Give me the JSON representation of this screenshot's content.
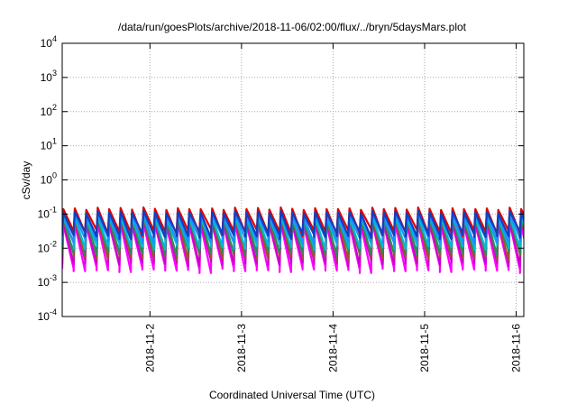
{
  "chart_data": {
    "type": "line",
    "title": "/data/run/goesPlots/archive/2018-11-06/02:00/flux/../bryn/5daysMars.plot",
    "xlabel": "Coordinated Universal Time (UTC)",
    "ylabel": "cSv/day",
    "y_scale": "log",
    "ylim": [
      0.0001,
      10000
    ],
    "xlim": [
      "2018-11-01 01:00",
      "2018-11-06 02:00"
    ],
    "grid": true,
    "legend": "none",
    "y_ticks": [
      {
        "base": "10",
        "exp": "-4"
      },
      {
        "base": "10",
        "exp": "-3"
      },
      {
        "base": "10",
        "exp": "-2"
      },
      {
        "base": "10",
        "exp": "-1"
      },
      {
        "base": "10",
        "exp": "0"
      },
      {
        "base": "10",
        "exp": "1"
      },
      {
        "base": "10",
        "exp": "2"
      },
      {
        "base": "10",
        "exp": "3"
      },
      {
        "base": "10",
        "exp": "4"
      }
    ],
    "x_ticks": [
      "2018-11-2",
      "2018-11-3",
      "2018-11-4",
      "2018-11-5",
      "2018-11-6"
    ],
    "cycle_hours": 3,
    "series": [
      {
        "color": "#ff00ff",
        "peak": 0.05,
        "trough": 0.0025
      },
      {
        "color": "#cc00cc",
        "peak": 0.06,
        "trough": 0.004
      },
      {
        "color": "#a0522d",
        "peak": 0.07,
        "trough": 0.006
      },
      {
        "color": "#2e8b57",
        "peak": 0.075,
        "trough": 0.008
      },
      {
        "color": "#00bcd4",
        "peak": 0.08,
        "trough": 0.012
      },
      {
        "color": "#1e90ff",
        "peak": 0.09,
        "trough": 0.018
      },
      {
        "color": "#e00000",
        "peak": 0.14,
        "trough": 0.03
      },
      {
        "color": "#1040c0",
        "peak": 0.11,
        "trough": 0.025
      }
    ],
    "peak_modulation": [
      1.0,
      1.05,
      0.95,
      1.1,
      1.0,
      1.08,
      0.97,
      1.12,
      1.02,
      0.94,
      1.06,
      1.0
    ],
    "trough_modulation": [
      1.0,
      0.85,
      1.1,
      0.9,
      1.2,
      0.8,
      1.05,
      0.95,
      1.15,
      0.88,
      1.0,
      0.92,
      0.75,
      1.1
    ]
  }
}
